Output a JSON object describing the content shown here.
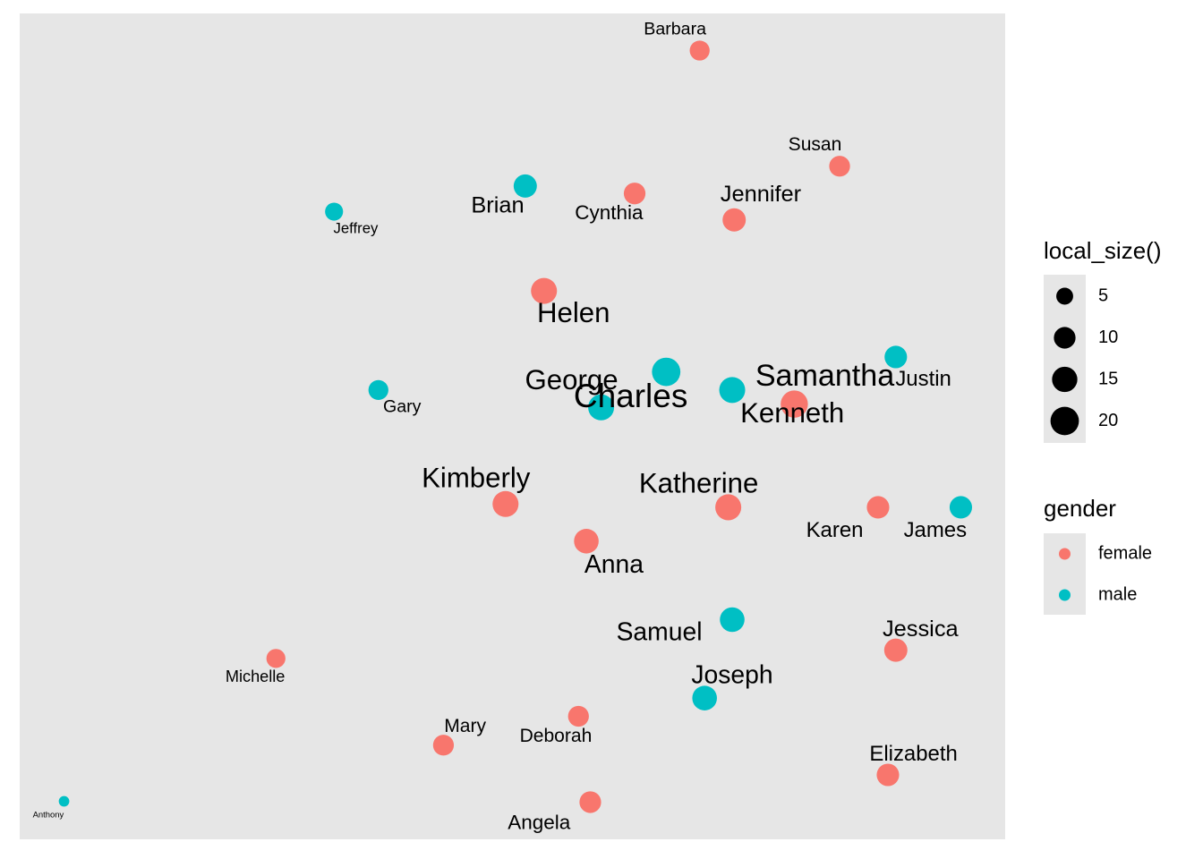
{
  "chart_data": {
    "type": "scatter",
    "title": "",
    "xlabel": "",
    "ylabel": "",
    "grid": false,
    "axes_shown": false,
    "xlim": [
      0,
      100
    ],
    "ylim": [
      0,
      100
    ],
    "colors": {
      "female": "#F8766D",
      "male": "#00BFC4"
    },
    "points": [
      {
        "name": "Barbara",
        "gender": "female",
        "size": 8,
        "x": 69.0,
        "y": 95.5,
        "lx": -2.5,
        "ly": 2.5
      },
      {
        "name": "Brian",
        "gender": "male",
        "size": 12,
        "x": 51.3,
        "y": 79.1,
        "lx": -2.8,
        "ly": -2.5
      },
      {
        "name": "Cynthia",
        "gender": "female",
        "size": 10,
        "x": 62.4,
        "y": 78.2,
        "lx": -2.6,
        "ly": -2.5
      },
      {
        "name": "Susan",
        "gender": "female",
        "size": 9,
        "x": 83.2,
        "y": 81.5,
        "lx": -2.5,
        "ly": 2.5
      },
      {
        "name": "Jennifer",
        "gender": "female",
        "size": 12,
        "x": 72.5,
        "y": 75.0,
        "lx": 2.7,
        "ly": 3.0
      },
      {
        "name": "Jeffrey",
        "gender": "male",
        "size": 6,
        "x": 31.9,
        "y": 76.0,
        "lx": 2.2,
        "ly": -2.1
      },
      {
        "name": "Helen",
        "gender": "female",
        "size": 16,
        "x": 53.2,
        "y": 66.4,
        "lx": 3.0,
        "ly": -2.9
      },
      {
        "name": "Charles",
        "gender": "male",
        "size": 20,
        "x": 65.6,
        "y": 56.6,
        "lx": -3.6,
        "ly": -3.2
      },
      {
        "name": "Kenneth",
        "gender": "male",
        "size": 16,
        "x": 72.3,
        "y": 54.4,
        "lx": 6.1,
        "ly": -3.0
      },
      {
        "name": "Justin",
        "gender": "male",
        "size": 11,
        "x": 88.9,
        "y": 58.4,
        "lx": 2.8,
        "ly": -2.8
      },
      {
        "name": "Gary",
        "gender": "male",
        "size": 8,
        "x": 36.4,
        "y": 54.4,
        "lx": 2.4,
        "ly": -2.1
      },
      {
        "name": "George",
        "gender": "male",
        "size": 16,
        "x": 59.0,
        "y": 52.3,
        "lx": -3.0,
        "ly": 3.1
      },
      {
        "name": "Samantha",
        "gender": "female",
        "size": 18,
        "x": 78.6,
        "y": 52.7,
        "lx": 3.1,
        "ly": 3.2
      },
      {
        "name": "Kimberly",
        "gender": "female",
        "size": 16,
        "x": 49.3,
        "y": 40.6,
        "lx": -3.0,
        "ly": 2.9
      },
      {
        "name": "Katherine",
        "gender": "female",
        "size": 16,
        "x": 71.9,
        "y": 40.2,
        "lx": -3.0,
        "ly": 2.7
      },
      {
        "name": "Karen",
        "gender": "female",
        "size": 11,
        "x": 87.1,
        "y": 40.2,
        "lx": -4.4,
        "ly": -2.9
      },
      {
        "name": "James",
        "gender": "male",
        "size": 11,
        "x": 95.5,
        "y": 40.2,
        "lx": -2.6,
        "ly": -2.9
      },
      {
        "name": "Anna",
        "gender": "female",
        "size": 14,
        "x": 57.5,
        "y": 36.1,
        "lx": 2.8,
        "ly": -3.0
      },
      {
        "name": "Samuel",
        "gender": "male",
        "size": 14,
        "x": 72.3,
        "y": 26.6,
        "lx": -7.4,
        "ly": -1.7
      },
      {
        "name": "Jessica",
        "gender": "female",
        "size": 12,
        "x": 88.9,
        "y": 22.9,
        "lx": 2.5,
        "ly": 2.4
      },
      {
        "name": "Michelle",
        "gender": "female",
        "size": 7,
        "x": 26.0,
        "y": 21.9,
        "lx": -2.1,
        "ly": -2.3
      },
      {
        "name": "Joseph",
        "gender": "male",
        "size": 14,
        "x": 69.5,
        "y": 17.1,
        "lx": 2.8,
        "ly": 2.6
      },
      {
        "name": "Mary",
        "gender": "female",
        "size": 9,
        "x": 43.0,
        "y": 11.4,
        "lx": 2.2,
        "ly": 2.2
      },
      {
        "name": "Deborah",
        "gender": "female",
        "size": 9,
        "x": 56.7,
        "y": 14.9,
        "lx": -2.3,
        "ly": -2.5
      },
      {
        "name": "Elizabeth",
        "gender": "female",
        "size": 11,
        "x": 88.1,
        "y": 7.8,
        "lx": 2.6,
        "ly": 2.4
      },
      {
        "name": "Angela",
        "gender": "female",
        "size": 10,
        "x": 57.9,
        "y": 4.5,
        "lx": -5.2,
        "ly": -2.6
      },
      {
        "name": "Anthony",
        "gender": "male",
        "size": 1,
        "x": 4.5,
        "y": 4.6,
        "lx": -1.6,
        "ly": -1.7
      }
    ],
    "legends": {
      "size": {
        "title": "local_size()",
        "breaks": [
          5,
          10,
          15,
          20
        ]
      },
      "color": {
        "title": "gender",
        "entries": [
          "female",
          "male"
        ]
      }
    }
  }
}
